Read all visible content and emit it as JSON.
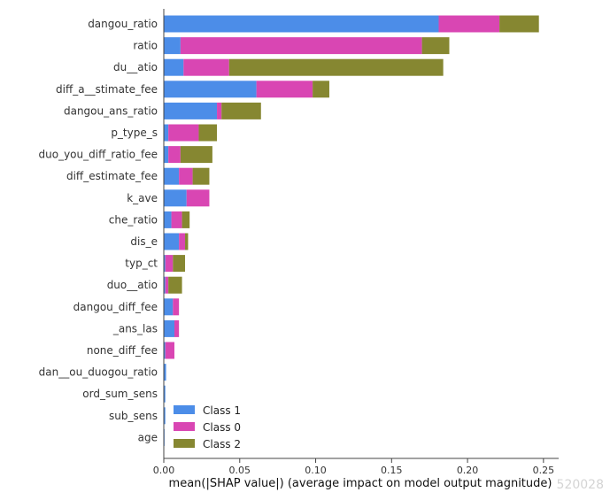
{
  "chart_data": {
    "type": "bar",
    "stacked": true,
    "orientation": "horizontal",
    "xlabel": "mean(|SHAP value|) (average impact on model output magnitude)",
    "xlim": [
      0,
      0.26
    ],
    "xticks": [
      0.0,
      0.05,
      0.1,
      0.15,
      0.2,
      0.25
    ],
    "xtick_labels": [
      "0.00",
      "0.05",
      "0.10",
      "0.15",
      "0.20",
      "0.25"
    ],
    "legend_position": "lower-right",
    "categories": [
      "dangou_ratio",
      "ratio",
      "du__atio",
      "diff_a__stimate_fee",
      "dangou_ans_ratio",
      "p_type_s",
      "duo_you_diff_ratio_fee",
      "diff_estimate_fee",
      "k_ave",
      "che_ratio",
      "dis_e",
      "typ_ct",
      "duo__atio",
      "dangou_diff_fee",
      "_ans_las",
      "none_diff_fee",
      "dan__ou_duogou_ratio",
      "ord_sum_sens",
      "sub_sens",
      "age"
    ],
    "series": [
      {
        "name": "Class 1",
        "color": "#4c8de8",
        "values": [
          0.181,
          0.011,
          0.013,
          0.061,
          0.035,
          0.003,
          0.003,
          0.01,
          0.015,
          0.005,
          0.01,
          0.001,
          0.001,
          0.006,
          0.007,
          0.001,
          0.0015,
          0.001,
          0.001,
          0.0005
        ]
      },
      {
        "name": "Class 0",
        "color": "#d946b3",
        "values": [
          0.04,
          0.159,
          0.03,
          0.037,
          0.003,
          0.02,
          0.008,
          0.009,
          0.015,
          0.007,
          0.004,
          0.005,
          0.002,
          0.004,
          0.003,
          0.006,
          0.0,
          0.0,
          0.0,
          0.0
        ]
      },
      {
        "name": "Class 2",
        "color": "#868731",
        "values": [
          0.026,
          0.018,
          0.141,
          0.011,
          0.026,
          0.012,
          0.021,
          0.011,
          0.0,
          0.005,
          0.002,
          0.008,
          0.009,
          0.0,
          0.0,
          0.0,
          0.0,
          0.0,
          0.0,
          0.0
        ]
      }
    ],
    "legend_order": [
      "Class 1",
      "Class 0",
      "Class 2"
    ]
  },
  "watermark": "520028"
}
